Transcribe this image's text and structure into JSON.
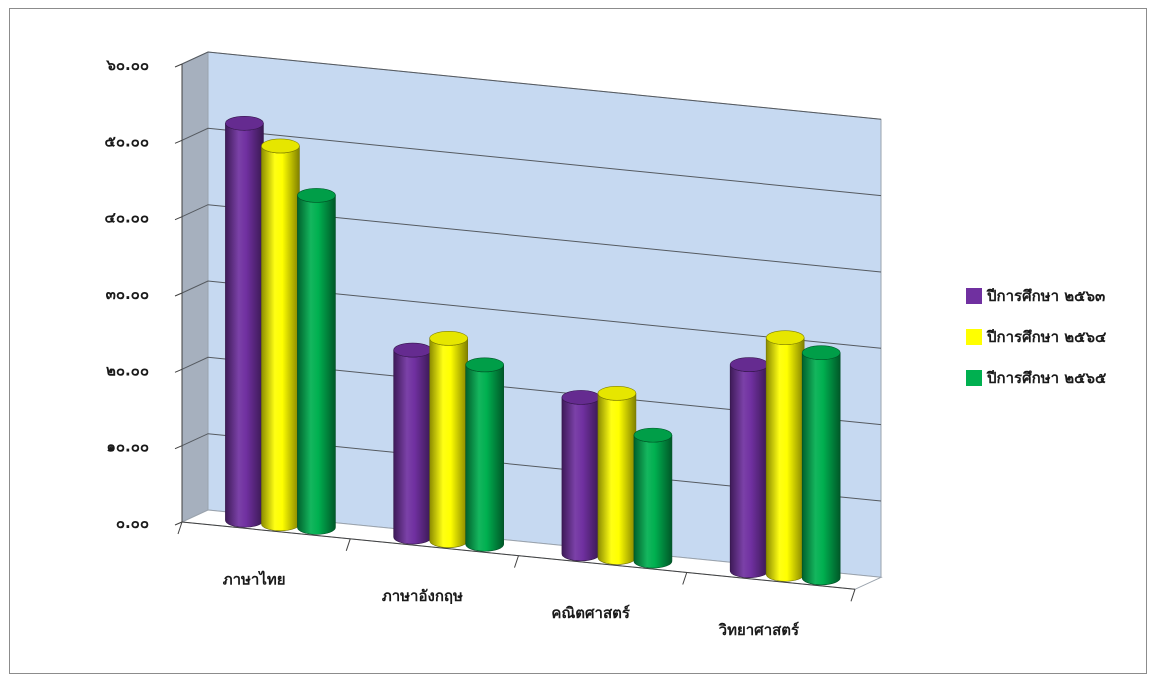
{
  "chart_data": {
    "type": "bar",
    "subtype": "3d-clustered-cylinder",
    "title": "",
    "xlabel": "",
    "ylabel": "",
    "categories": [
      "ภาษาไทย",
      "ภาษาอังกฤษ",
      "คณิตศาสตร์",
      "วิทยาศาสตร์"
    ],
    "series": [
      {
        "name": "ปีการศึกษา ๒๕๖๓",
        "color": "#7030A0",
        "values": [
          52.0,
          24.5,
          20.5,
          27.0
        ]
      },
      {
        "name": "ปีการศึกษา ๒๕๖๔",
        "color": "#FFFF00",
        "values": [
          49.5,
          26.5,
          21.5,
          31.0
        ]
      },
      {
        "name": "ปีการศึกษา ๒๕๖๕",
        "color": "#00B050",
        "values": [
          43.5,
          23.5,
          16.5,
          29.5
        ]
      }
    ],
    "ylim": [
      0,
      60
    ],
    "yticks": [
      "๐.๐๐",
      "๑๐.๐๐",
      "๒๐.๐๐",
      "๓๐.๐๐",
      "๔๐.๐๐",
      "๕๐.๐๐",
      "๖๐.๐๐"
    ],
    "grid": true,
    "legend_position": "right",
    "wall_color": "#C6D9F1",
    "side_wall_color": "#A6B0BE"
  }
}
